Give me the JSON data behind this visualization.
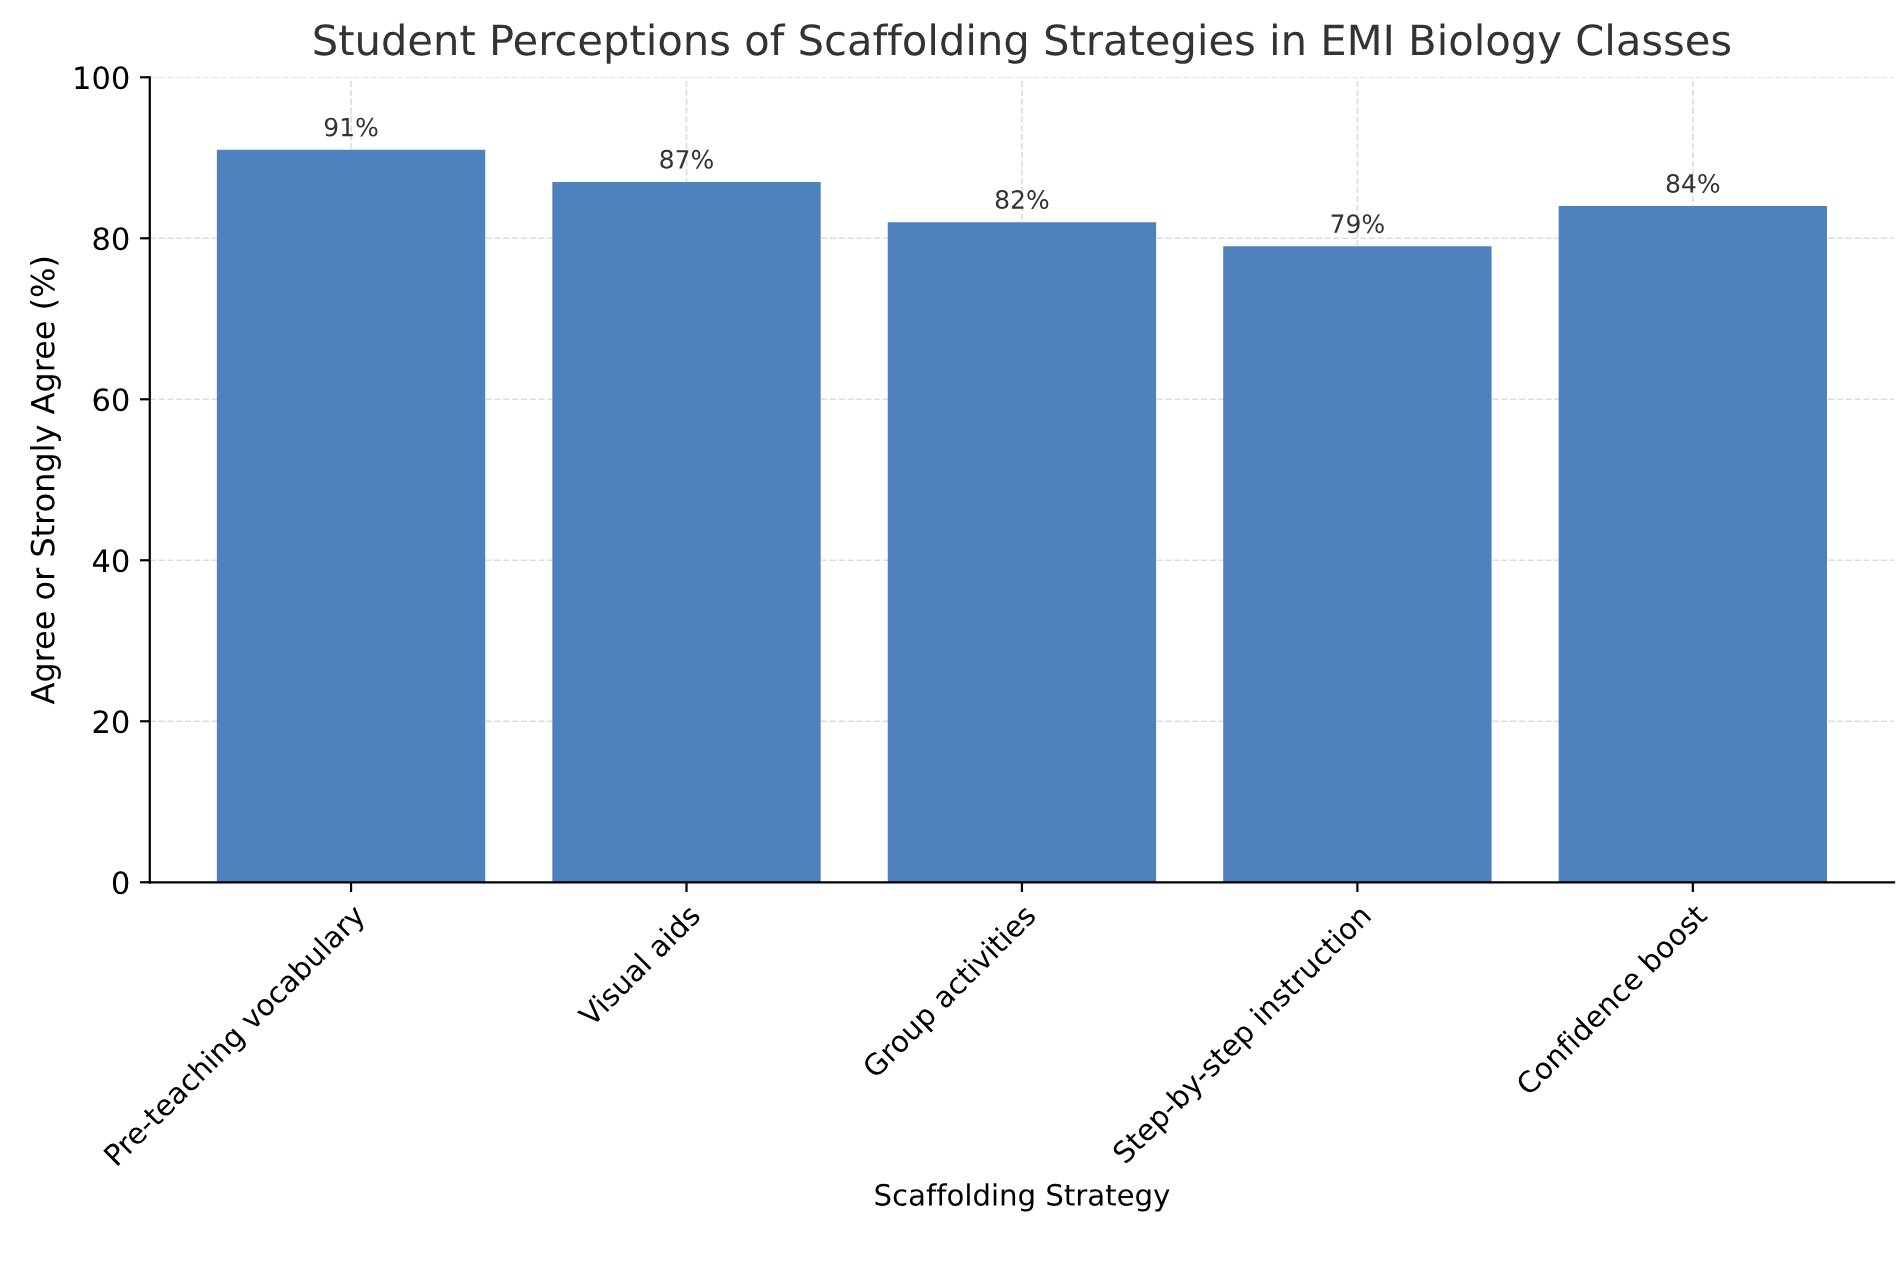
{
  "chart_data": {
    "type": "bar",
    "title": "Student Perceptions of Scaffolding Strategies in EMI Biology Classes",
    "xlabel": "Scaffolding Strategy",
    "ylabel": "Agree or Strongly Agree (%)",
    "categories": [
      "Pre-teaching vocabulary",
      "Visual aids",
      "Group activities",
      "Step-by-step instruction",
      "Confidence boost"
    ],
    "values": [
      91,
      87,
      82,
      79,
      84
    ],
    "value_labels": [
      "91%",
      "87%",
      "82%",
      "79%",
      "84%"
    ],
    "color": "#4f81bd",
    "ylim": [
      0,
      100
    ],
    "yticks": [
      0,
      20,
      40,
      60,
      80,
      100
    ],
    "grid": true
  }
}
